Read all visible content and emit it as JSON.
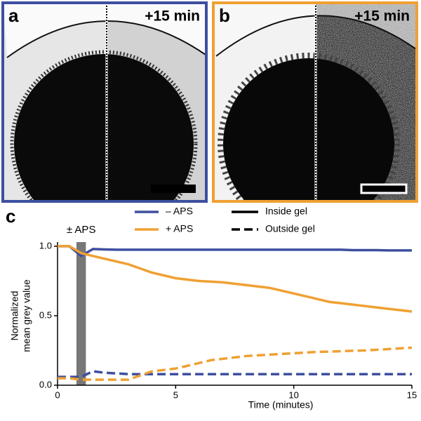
{
  "panels": [
    {
      "label": "a",
      "time": "+15 min",
      "border": "#3d4f9f"
    },
    {
      "label": "b",
      "time": "+15 min",
      "border": "#f0a033"
    }
  ],
  "chart_data": {
    "type": "line",
    "panel_label": "c",
    "y_label": [
      "Normalized",
      "mean grey value"
    ],
    "x_label": "Time (minutes)",
    "xlim": [
      0,
      15
    ],
    "xticks": [
      0,
      5,
      10,
      15
    ],
    "ylim": [
      0,
      1.03
    ],
    "yticks": [
      {
        "value": 0,
        "label": "0.0"
      },
      0.5,
      {
        "value": 1,
        "label": "1.0"
      }
    ],
    "band": {
      "from": 0.8,
      "to": 1.2,
      "label": "± APS",
      "color": "#777777"
    },
    "legend_colors": [
      {
        "label": "– APS",
        "color": "#3d4f9f"
      },
      {
        "label": "+ APS",
        "color": "#f0a033"
      }
    ],
    "legend_styles": [
      {
        "label": "Inside gel",
        "dashed": false
      },
      {
        "label": "Outside gel",
        "dashed": true
      }
    ],
    "x": [
      0,
      0.5,
      1,
      1.5,
      2,
      2.5,
      3,
      3.5,
      4,
      4.5,
      5,
      5.5,
      6,
      6.5,
      7,
      7.5,
      8,
      8.5,
      9,
      9.5,
      10,
      10.5,
      11,
      11.5,
      12,
      12.5,
      13,
      13.5,
      14,
      14.5,
      15
    ],
    "series": [
      {
        "color_index": 0,
        "style_index": 0,
        "values": [
          1.0,
          1.0,
          0.93,
          0.98,
          0.977,
          0.975,
          0.975,
          0.975,
          0.975,
          0.975,
          0.975,
          0.975,
          0.975,
          0.975,
          0.975,
          0.975,
          0.975,
          0.975,
          0.975,
          0.975,
          0.975,
          0.975,
          0.975,
          0.975,
          0.975,
          0.972,
          0.972,
          0.972,
          0.97,
          0.97,
          0.97
        ]
      },
      {
        "color_index": 1,
        "style_index": 0,
        "values": [
          1.0,
          1.0,
          0.95,
          0.93,
          0.91,
          0.89,
          0.87,
          0.84,
          0.81,
          0.79,
          0.77,
          0.76,
          0.75,
          0.745,
          0.74,
          0.73,
          0.72,
          0.71,
          0.7,
          0.68,
          0.66,
          0.64,
          0.62,
          0.6,
          0.59,
          0.58,
          0.57,
          0.56,
          0.55,
          0.54,
          0.53
        ]
      },
      {
        "color_index": 0,
        "style_index": 1,
        "values": [
          0.06,
          0.06,
          0.06,
          0.1,
          0.09,
          0.085,
          0.08,
          0.08,
          0.08,
          0.08,
          0.08,
          0.08,
          0.08,
          0.08,
          0.08,
          0.08,
          0.08,
          0.08,
          0.08,
          0.08,
          0.08,
          0.08,
          0.08,
          0.08,
          0.08,
          0.08,
          0.08,
          0.08,
          0.08,
          0.08,
          0.08
        ]
      },
      {
        "color_index": 1,
        "style_index": 1,
        "values": [
          0.05,
          0.05,
          0.04,
          0.04,
          0.04,
          0.04,
          0.04,
          0.07,
          0.1,
          0.11,
          0.12,
          0.14,
          0.16,
          0.18,
          0.19,
          0.2,
          0.21,
          0.215,
          0.22,
          0.225,
          0.23,
          0.235,
          0.24,
          0.242,
          0.245,
          0.248,
          0.25,
          0.255,
          0.26,
          0.265,
          0.27
        ]
      }
    ]
  }
}
